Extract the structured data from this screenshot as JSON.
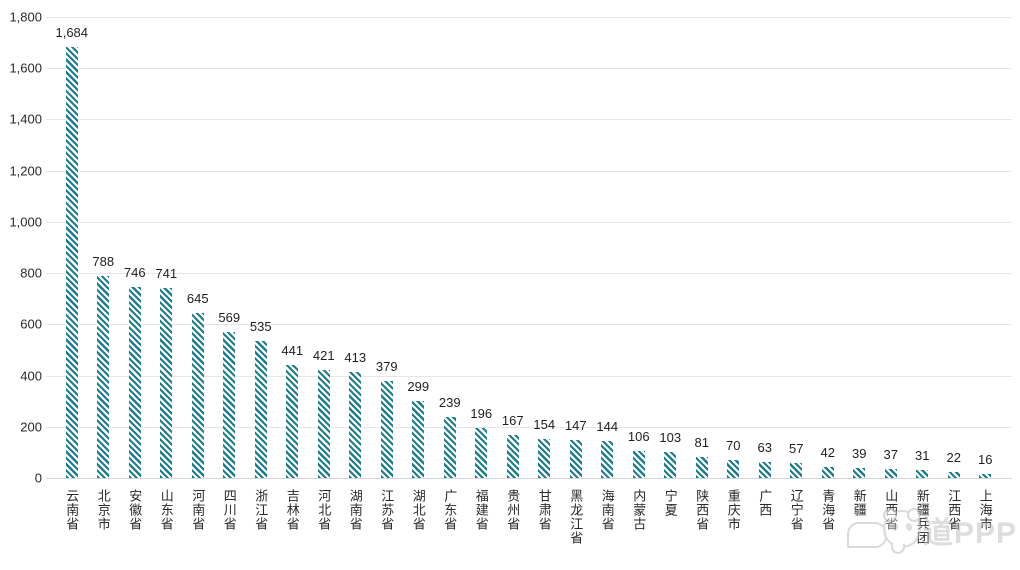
{
  "chart_data": {
    "type": "bar",
    "title": "",
    "xlabel": "",
    "ylabel": "",
    "categories": [
      "云南省",
      "北京市",
      "安徽省",
      "山东省",
      "河南省",
      "四川省",
      "浙江省",
      "吉林省",
      "河北省",
      "湖南省",
      "江苏省",
      "湖北省",
      "广东省",
      "福建省",
      "贵州省",
      "甘肃省",
      "黑龙江省",
      "海南省",
      "内蒙古",
      "宁夏",
      "陕西省",
      "重庆市",
      "广西",
      "辽宁省",
      "青海省",
      "新疆",
      "山西省",
      "新疆兵团",
      "江西省",
      "上海市"
    ],
    "values": [
      1684,
      788,
      746,
      741,
      645,
      569,
      535,
      441,
      421,
      413,
      379,
      299,
      239,
      196,
      167,
      154,
      147,
      144,
      106,
      103,
      81,
      70,
      63,
      57,
      42,
      39,
      37,
      31,
      22,
      16
    ],
    "value_labels": [
      "1,684",
      "788",
      "746",
      "741",
      "645",
      "569",
      "535",
      "441",
      "421",
      "413",
      "379",
      "299",
      "239",
      "196",
      "167",
      "154",
      "147",
      "144",
      "106",
      "103",
      "81",
      "70",
      "63",
      "57",
      "42",
      "39",
      "37",
      "31",
      "22",
      "16"
    ],
    "ylim": [
      0,
      1800
    ],
    "ytick_step": 200,
    "ytick_labels_top_to_bottom": [
      "1,800",
      "1,600",
      "1,400",
      "1,200",
      "1,000",
      "800",
      "600",
      "400",
      "200",
      "0"
    ],
    "grid": true,
    "legend_position": "none",
    "bar_pattern": "diagonal-hatch",
    "bar_color": "#1f7c8c",
    "grid_color": "#e6e6e6",
    "axis_line_color": "#d6d6d6",
    "text_color": "#2a2a2a"
  },
  "watermark": {
    "text": "道PPP",
    "icon": "panda-speech-bubble-icon"
  }
}
